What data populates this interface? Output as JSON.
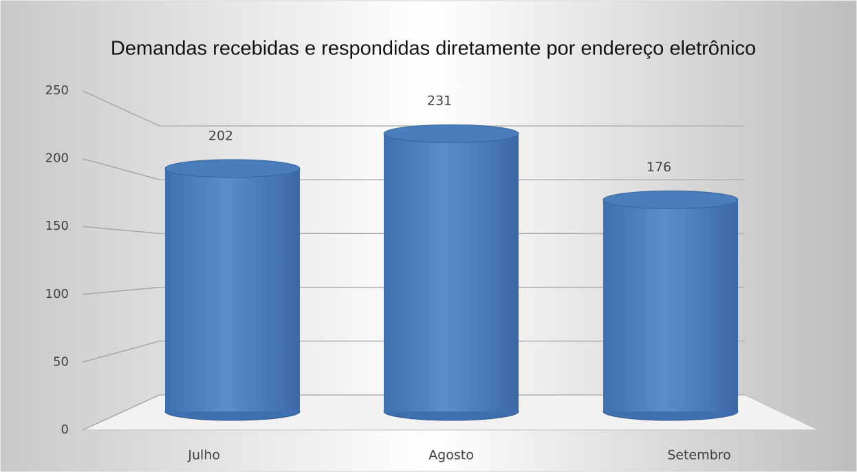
{
  "chart_data": {
    "type": "bar",
    "title": "Demandas recebidas e respondidas diretamente por endereço eletrônico",
    "categories": [
      "Julho",
      "Agosto",
      "Setembro"
    ],
    "values": [
      202,
      231,
      176
    ],
    "color": "#4a7ebb",
    "ylim": [
      0,
      250
    ],
    "yticks": [
      0,
      50,
      100,
      150,
      200,
      250
    ],
    "grid": true
  }
}
